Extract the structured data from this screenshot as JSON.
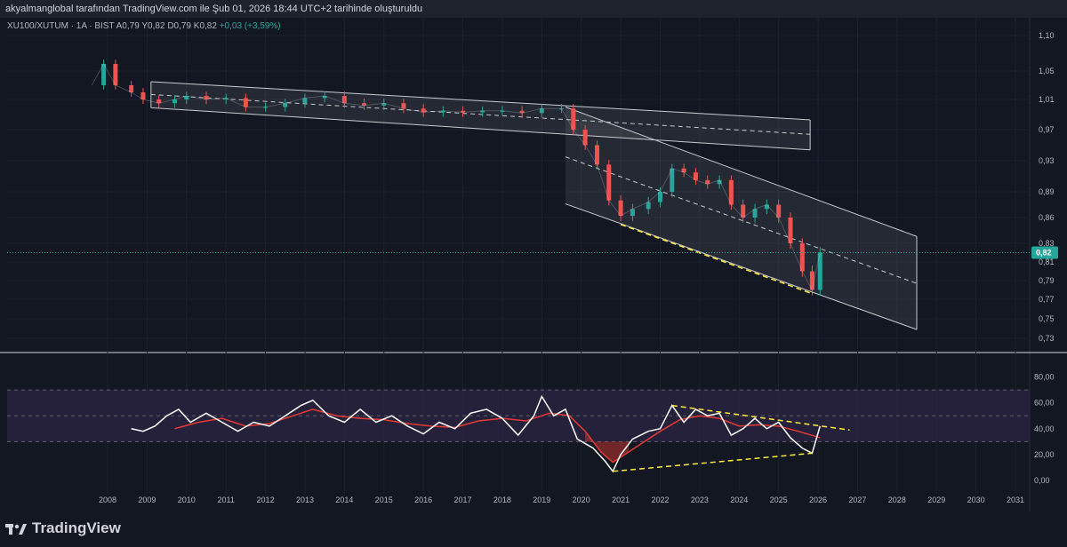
{
  "header": {
    "text": "akyalmanglobal tarafından TradingView.com ile Şub 01, 2026 18:44 UTC+2 tarihinde oluşturuldu"
  },
  "legend": {
    "symbol": "XU100/XUTUM · 1A · BIST",
    "open": "A0,79",
    "high": "Y0,82",
    "low": "D0,79",
    "close": "K0,82",
    "change": "+0,03 (+3,59%)"
  },
  "brand": {
    "name": "TradingView"
  },
  "colors": {
    "background": "#131722",
    "up": "#26a69a",
    "down": "#ef5350",
    "rsi_line": "#ffffff",
    "rsi_ma": "#e53935",
    "band_fill": "#2a2340",
    "trendline": "#ffeb3b",
    "channel": "#c8cad0",
    "price_badge": "#26a69a"
  },
  "chart_data": [
    {
      "type": "candlestick",
      "title": "",
      "xlabel": "",
      "ylabel": "",
      "ylim": [
        0.71,
        1.12
      ],
      "y_ticks": [
        "1,10",
        "1,05",
        "1,01",
        "0,97",
        "0,93",
        "0,89",
        "0,86",
        "0,83",
        "0,81",
        "0,79",
        "0,77",
        "0,75",
        "0,73"
      ],
      "y_tick_values": [
        1.1,
        1.05,
        1.01,
        0.97,
        0.93,
        0.89,
        0.86,
        0.83,
        0.81,
        0.79,
        0.77,
        0.75,
        0.73
      ],
      "last_price_label": "0,82",
      "last_price": 0.82,
      "x_ticks": [
        "2008",
        "2009",
        "2010",
        "2011",
        "2012",
        "2013",
        "2014",
        "2015",
        "2016",
        "2017",
        "2018",
        "2019",
        "2020",
        "2021",
        "2022",
        "2023",
        "2024",
        "2025",
        "2026",
        "2027",
        "2028",
        "2029",
        "2030",
        "2031"
      ],
      "x_tick_years": [
        2008,
        2009,
        2010,
        2011,
        2012,
        2013,
        2014,
        2015,
        2016,
        2017,
        2018,
        2019,
        2020,
        2021,
        2022,
        2023,
        2024,
        2025,
        2026,
        2027,
        2028,
        2029,
        2030,
        2031
      ],
      "close_series": [
        {
          "t": 2007.6,
          "v": 1.03
        },
        {
          "t": 2007.9,
          "v": 1.06
        },
        {
          "t": 2008.2,
          "v": 1.03
        },
        {
          "t": 2008.6,
          "v": 1.02
        },
        {
          "t": 2008.9,
          "v": 1.01
        },
        {
          "t": 2009.3,
          "v": 1.005
        },
        {
          "t": 2009.7,
          "v": 1.01
        },
        {
          "t": 2010.0,
          "v": 1.015
        },
        {
          "t": 2010.5,
          "v": 1.01
        },
        {
          "t": 2011.0,
          "v": 1.012
        },
        {
          "t": 2011.5,
          "v": 1.0
        },
        {
          "t": 2012.0,
          "v": 1.0
        },
        {
          "t": 2012.5,
          "v": 1.005
        },
        {
          "t": 2013.0,
          "v": 1.012
        },
        {
          "t": 2013.5,
          "v": 1.015
        },
        {
          "t": 2014.0,
          "v": 1.005
        },
        {
          "t": 2014.5,
          "v": 1.002
        },
        {
          "t": 2015.0,
          "v": 1.005
        },
        {
          "t": 2015.5,
          "v": 0.998
        },
        {
          "t": 2016.0,
          "v": 0.993
        },
        {
          "t": 2016.5,
          "v": 0.995
        },
        {
          "t": 2017.0,
          "v": 0.993
        },
        {
          "t": 2017.5,
          "v": 0.995
        },
        {
          "t": 2018.0,
          "v": 0.995
        },
        {
          "t": 2018.5,
          "v": 0.992
        },
        {
          "t": 2019.0,
          "v": 0.998
        },
        {
          "t": 2019.5,
          "v": 0.998
        },
        {
          "t": 2019.8,
          "v": 0.97
        },
        {
          "t": 2020.1,
          "v": 0.95
        },
        {
          "t": 2020.4,
          "v": 0.925
        },
        {
          "t": 2020.7,
          "v": 0.88
        },
        {
          "t": 2021.0,
          "v": 0.862
        },
        {
          "t": 2021.3,
          "v": 0.87
        },
        {
          "t": 2021.7,
          "v": 0.878
        },
        {
          "t": 2022.0,
          "v": 0.89
        },
        {
          "t": 2022.3,
          "v": 0.92
        },
        {
          "t": 2022.6,
          "v": 0.915
        },
        {
          "t": 2022.9,
          "v": 0.905
        },
        {
          "t": 2023.2,
          "v": 0.9
        },
        {
          "t": 2023.5,
          "v": 0.905
        },
        {
          "t": 2023.8,
          "v": 0.875
        },
        {
          "t": 2024.1,
          "v": 0.86
        },
        {
          "t": 2024.4,
          "v": 0.87
        },
        {
          "t": 2024.7,
          "v": 0.875
        },
        {
          "t": 2025.0,
          "v": 0.86
        },
        {
          "t": 2025.3,
          "v": 0.83
        },
        {
          "t": 2025.6,
          "v": 0.8
        },
        {
          "t": 2025.85,
          "v": 0.78
        },
        {
          "t": 2026.05,
          "v": 0.82
        }
      ],
      "channels": [
        {
          "name": "",
          "upper": [
            [
              2009.1,
              1.035
            ],
            [
              2025.8,
              0.983
            ]
          ],
          "lower": [
            [
              2009.1,
              0.999
            ],
            [
              2025.8,
              0.944
            ]
          ],
          "mid": [
            [
              2009.1,
              1.017
            ],
            [
              2025.8,
              0.964
            ]
          ]
        },
        {
          "name": "",
          "upper": [
            [
              2019.6,
              1.0
            ],
            [
              2028.5,
              0.838
            ]
          ],
          "lower": [
            [
              2019.6,
              0.876
            ],
            [
              2028.5,
              0.739
            ]
          ],
          "mid": [
            [
              2019.6,
              0.935
            ],
            [
              2028.5,
              0.787
            ]
          ]
        }
      ],
      "support_line": [
        [
          2021.0,
          0.852
        ],
        [
          2025.85,
          0.776
        ]
      ]
    },
    {
      "type": "line",
      "title": "",
      "xlabel": "",
      "ylabel": "",
      "ylim": [
        -10,
        90
      ],
      "y_ticks": [
        "80,00",
        "60,00",
        "40,00",
        "20,00",
        "0,00"
      ],
      "y_tick_values": [
        80,
        60,
        40,
        20,
        0
      ],
      "band": [
        30,
        70
      ],
      "series": [
        {
          "name": "",
          "values": [
            {
              "t": 2008.6,
              "v": 40
            },
            {
              "t": 2008.9,
              "v": 38
            },
            {
              "t": 2009.2,
              "v": 42
            },
            {
              "t": 2009.5,
              "v": 50
            },
            {
              "t": 2009.8,
              "v": 55
            },
            {
              "t": 2010.1,
              "v": 45
            },
            {
              "t": 2010.5,
              "v": 52
            },
            {
              "t": 2010.9,
              "v": 45
            },
            {
              "t": 2011.3,
              "v": 38
            },
            {
              "t": 2011.7,
              "v": 45
            },
            {
              "t": 2012.1,
              "v": 42
            },
            {
              "t": 2012.5,
              "v": 50
            },
            {
              "t": 2012.9,
              "v": 58
            },
            {
              "t": 2013.2,
              "v": 62
            },
            {
              "t": 2013.6,
              "v": 50
            },
            {
              "t": 2014.0,
              "v": 45
            },
            {
              "t": 2014.4,
              "v": 55
            },
            {
              "t": 2014.8,
              "v": 45
            },
            {
              "t": 2015.2,
              "v": 50
            },
            {
              "t": 2015.6,
              "v": 42
            },
            {
              "t": 2016.0,
              "v": 36
            },
            {
              "t": 2016.4,
              "v": 45
            },
            {
              "t": 2016.8,
              "v": 40
            },
            {
              "t": 2017.2,
              "v": 52
            },
            {
              "t": 2017.6,
              "v": 55
            },
            {
              "t": 2018.0,
              "v": 48
            },
            {
              "t": 2018.4,
              "v": 35
            },
            {
              "t": 2018.8,
              "v": 50
            },
            {
              "t": 2019.0,
              "v": 65
            },
            {
              "t": 2019.3,
              "v": 50
            },
            {
              "t": 2019.6,
              "v": 55
            },
            {
              "t": 2019.9,
              "v": 32
            },
            {
              "t": 2020.3,
              "v": 25
            },
            {
              "t": 2020.6,
              "v": 15
            },
            {
              "t": 2020.8,
              "v": 7
            },
            {
              "t": 2021.0,
              "v": 20
            },
            {
              "t": 2021.3,
              "v": 32
            },
            {
              "t": 2021.7,
              "v": 38
            },
            {
              "t": 2022.0,
              "v": 40
            },
            {
              "t": 2022.3,
              "v": 58
            },
            {
              "t": 2022.6,
              "v": 45
            },
            {
              "t": 2022.9,
              "v": 55
            },
            {
              "t": 2023.2,
              "v": 50
            },
            {
              "t": 2023.5,
              "v": 52
            },
            {
              "t": 2023.8,
              "v": 35
            },
            {
              "t": 2024.1,
              "v": 40
            },
            {
              "t": 2024.4,
              "v": 48
            },
            {
              "t": 2024.7,
              "v": 40
            },
            {
              "t": 2025.0,
              "v": 45
            },
            {
              "t": 2025.3,
              "v": 33
            },
            {
              "t": 2025.6,
              "v": 25
            },
            {
              "t": 2025.85,
              "v": 21
            },
            {
              "t": 2026.05,
              "v": 42
            }
          ]
        },
        {
          "name": "",
          "values": [
            {
              "t": 2009.7,
              "v": 40
            },
            {
              "t": 2010.3,
              "v": 45
            },
            {
              "t": 2010.9,
              "v": 48
            },
            {
              "t": 2011.5,
              "v": 42
            },
            {
              "t": 2012.1,
              "v": 44
            },
            {
              "t": 2012.7,
              "v": 50
            },
            {
              "t": 2013.2,
              "v": 55
            },
            {
              "t": 2013.8,
              "v": 50
            },
            {
              "t": 2014.4,
              "v": 48
            },
            {
              "t": 2015.0,
              "v": 47
            },
            {
              "t": 2015.6,
              "v": 44
            },
            {
              "t": 2016.2,
              "v": 42
            },
            {
              "t": 2016.8,
              "v": 41
            },
            {
              "t": 2017.4,
              "v": 46
            },
            {
              "t": 2018.0,
              "v": 48
            },
            {
              "t": 2018.6,
              "v": 46
            },
            {
              "t": 2019.2,
              "v": 52
            },
            {
              "t": 2019.7,
              "v": 50
            },
            {
              "t": 2020.1,
              "v": 38
            },
            {
              "t": 2020.5,
              "v": 22
            },
            {
              "t": 2020.8,
              "v": 14
            },
            {
              "t": 2021.2,
              "v": 22
            },
            {
              "t": 2021.6,
              "v": 30
            },
            {
              "t": 2022.0,
              "v": 38
            },
            {
              "t": 2022.5,
              "v": 47
            },
            {
              "t": 2023.0,
              "v": 50
            },
            {
              "t": 2023.5,
              "v": 48
            },
            {
              "t": 2024.0,
              "v": 42
            },
            {
              "t": 2024.5,
              "v": 43
            },
            {
              "t": 2025.0,
              "v": 42
            },
            {
              "t": 2025.5,
              "v": 38
            },
            {
              "t": 2026.05,
              "v": 33
            }
          ]
        }
      ],
      "trendlines": [
        [
          [
            2020.8,
            7
          ],
          [
            2025.85,
            21
          ]
        ],
        [
          [
            2022.3,
            58
          ],
          [
            2026.8,
            39
          ]
        ]
      ]
    }
  ]
}
